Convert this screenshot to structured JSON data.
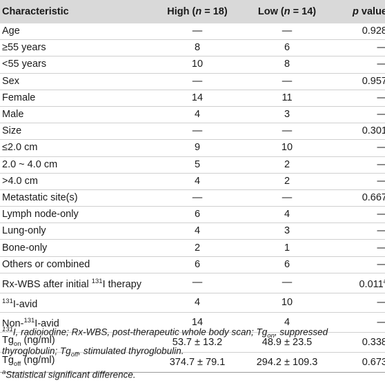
{
  "header": {
    "characteristic": "Characteristic",
    "high_prefix": "High (",
    "high_n": "n",
    "high_suffix": " = 18)",
    "low_prefix": "Low (",
    "low_n": "n",
    "low_suffix": " = 14)",
    "p": "p",
    "p_suffix": " value"
  },
  "rows": [
    {
      "label": "Age",
      "high": "—",
      "low": "—",
      "p": "0.928"
    },
    {
      "label": "≥55 years",
      "high": "8",
      "low": "6",
      "p": "—"
    },
    {
      "label": "<55 years",
      "high": "10",
      "low": "8",
      "p": "—"
    },
    {
      "label": "Sex",
      "high": "—",
      "low": "—",
      "p": "0.957"
    },
    {
      "label": "Female",
      "high": "14",
      "low": "11",
      "p": "—"
    },
    {
      "label": "Male",
      "high": "4",
      "low": "3",
      "p": "—"
    },
    {
      "label": "Size",
      "high": "—",
      "low": "—",
      "p": "0.301"
    },
    {
      "label": "≤2.0 cm",
      "high": "9",
      "low": "10",
      "p": "—"
    },
    {
      "label": "2.0 ~ 4.0 cm",
      "high": "5",
      "low": "2",
      "p": "—"
    },
    {
      "label": ">4.0 cm",
      "high": "4",
      "low": "2",
      "p": "—"
    },
    {
      "label": "Metastatic site(s)",
      "high": "—",
      "low": "—",
      "p": "0.667"
    },
    {
      "label": "Lymph node-only",
      "high": "6",
      "low": "4",
      "p": "—"
    },
    {
      "label": "Lung-only",
      "high": "4",
      "low": "3",
      "p": "—"
    },
    {
      "label": "Bone-only",
      "high": "2",
      "low": "1",
      "p": "—"
    },
    {
      "label": "Others or combined",
      "high": "6",
      "low": "6",
      "p": "—"
    }
  ],
  "rxwbs_row": {
    "label_pre": "Rx-WBS after initial ",
    "sup": "131",
    "label_post": "I therapy",
    "high": "—",
    "low": "—",
    "p": "0.011",
    "p_sup": "a"
  },
  "avid_row": {
    "sup": "131",
    "label_post": "I-avid",
    "high": "4",
    "low": "10",
    "p": "—"
  },
  "nonavid_row": {
    "label_pre": "Non-",
    "sup": "131",
    "label_post": "I-avid",
    "high": "14",
    "low": "4",
    "p": "—"
  },
  "tgon_row": {
    "label_pre": "Tg",
    "sub": "on",
    "label_post": " (ng/ml)",
    "high": "53.7 ± 13.2",
    "low": "48.9 ± 23.5",
    "p": "0.338"
  },
  "tgoff_row": {
    "label_pre": "Tg",
    "sub": "off",
    "label_post": " (ng/ml)",
    "high": "374.7 ± 79.1",
    "low": "294.2 ± 109.3",
    "p": "0.673"
  },
  "footnotes": {
    "line1_sup": "131",
    "line1_a": "I, radioiodine; Rx-WBS, post-therapeutic whole body scan; Tg",
    "line1_sub1": "on",
    "line1_b": ", suppressed thyroglobulin; Tg",
    "line1_sub2": "off",
    "line1_c": ", stimulated thyroglobulin.",
    "line2_sup": "a",
    "line2_text": "Statistical significant difference."
  }
}
